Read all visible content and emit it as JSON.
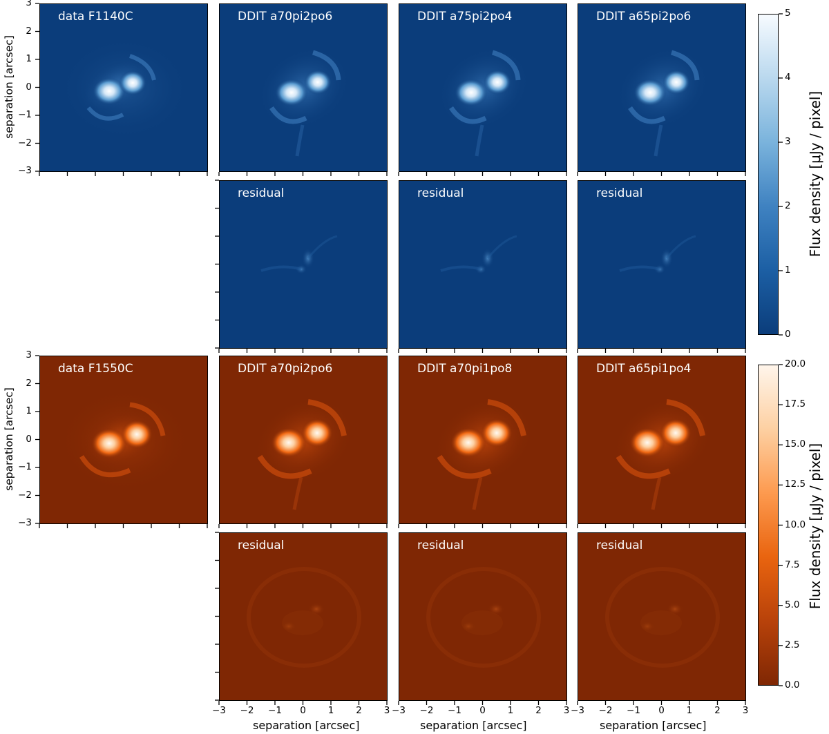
{
  "figure": {
    "rows": [
      {
        "colormap": "blue",
        "colors": {
          "bg": "#0b3d7b",
          "mid": "#4a90c8",
          "peak": "#ffffff"
        },
        "model_panels": [
          "data F1140C",
          "DDIT a70pi2po6",
          "DDIT a75pi2po4",
          "DDIT a65pi2po6"
        ],
        "residual_panels": [
          "residual",
          "residual",
          "residual"
        ],
        "colorbar": {
          "label": "Flux density [μJy / pixel]",
          "ticks": [
            "0",
            "1",
            "2",
            "3",
            "4",
            "5"
          ],
          "range": [
            0,
            5
          ]
        }
      },
      {
        "colormap": "orange",
        "colors": {
          "bg": "#7f2704",
          "mid": "#f16913",
          "peak": "#fff5eb"
        },
        "model_panels": [
          "data F1550C",
          "DDIT a70pi2po6",
          "DDIT a70pi1po8",
          "DDIT a65pi1po4"
        ],
        "residual_panels": [
          "residual",
          "residual",
          "residual"
        ],
        "colorbar": {
          "label": "Flux density [μJy / pixel]",
          "ticks": [
            "0.0",
            "2.5",
            "5.0",
            "7.5",
            "10.0",
            "12.5",
            "15.0",
            "17.5",
            "20.0"
          ],
          "range": [
            0,
            20
          ]
        }
      }
    ],
    "axes": {
      "ylabel": "separation [arcsec]",
      "xlabel": "separation [arcsec]",
      "tick_values": [
        "3",
        "2",
        "1",
        "0",
        "−1",
        "−2",
        "−3"
      ],
      "xtick_values": [
        "−3",
        "−2",
        "−1",
        "0",
        "1",
        "2",
        "3"
      ],
      "range": [
        -3,
        3
      ]
    }
  }
}
